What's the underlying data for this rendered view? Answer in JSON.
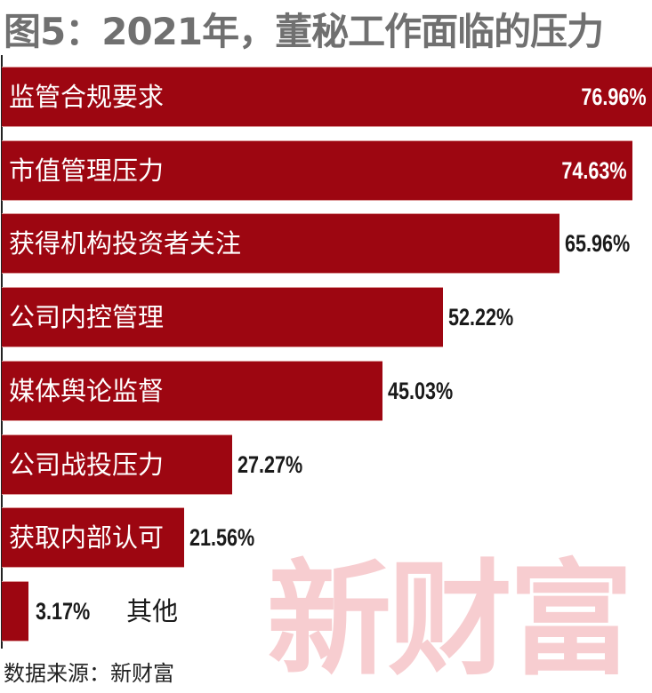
{
  "title": "图5：2021年，董秘工作面临的压力",
  "source": "数据来源：新财富",
  "watermark": "新财富",
  "chart_data": {
    "type": "bar",
    "orientation": "horizontal",
    "title": "图5：2021年，董秘工作面临的压力",
    "categories": [
      "监管合规要求",
      "市值管理压力",
      "获得机构投资者关注",
      "公司内控管理",
      "媒体舆论监督",
      "公司战投压力",
      "获取内部认可",
      "其他"
    ],
    "values": [
      76.96,
      74.63,
      65.96,
      52.22,
      45.03,
      27.27,
      21.56,
      3.17
    ],
    "value_labels": [
      "76.96%",
      "74.63%",
      "65.96%",
      "52.22%",
      "45.03%",
      "27.27%",
      "21.56%",
      "3.17%"
    ],
    "unit": "%",
    "grid": false,
    "bar_color": "#9d0611",
    "xlim": [
      0,
      77
    ]
  }
}
